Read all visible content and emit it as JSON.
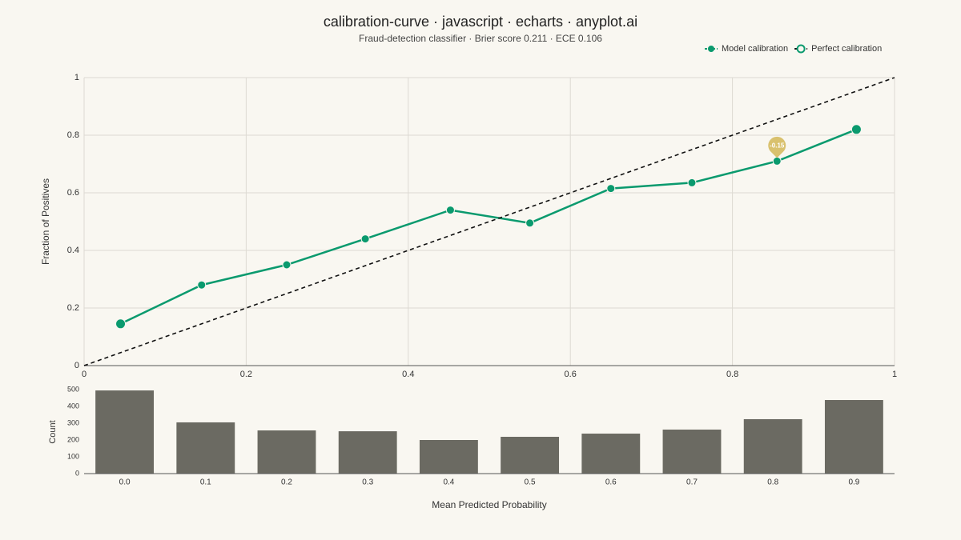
{
  "chart_data": [
    {
      "type": "line",
      "title": "calibration-curve · javascript · echarts · anyplot.ai",
      "subtitle": "Fraud-detection classifier · Brier score 0.211 · ECE 0.106",
      "ylabel": "Fraction of Positives",
      "xlim": [
        0,
        1
      ],
      "xticks": [
        0,
        0.2,
        0.4,
        0.6,
        0.8,
        1
      ],
      "ylim": [
        0,
        1
      ],
      "yticks": [
        0,
        0.2,
        0.4,
        0.6,
        0.8,
        1
      ],
      "grid": true,
      "legend": "upper right",
      "series": [
        {
          "name": "Model calibration",
          "color": "#0a9a6e",
          "dashed": false,
          "markers": true,
          "x": [
            0.045,
            0.145,
            0.25,
            0.347,
            0.452,
            0.55,
            0.65,
            0.75,
            0.855,
            0.953
          ],
          "values": [
            0.145,
            0.28,
            0.35,
            0.44,
            0.54,
            0.495,
            0.615,
            0.635,
            0.71,
            0.82
          ]
        },
        {
          "name": "Perfect calibration",
          "color": "#111111",
          "dashed": true,
          "markers": false,
          "x": [
            0,
            1
          ],
          "values": [
            0,
            1
          ]
        }
      ],
      "annotations": [
        {
          "text": "-0.15",
          "x": 0.855,
          "y": 0.71,
          "color": "#d9c16e"
        }
      ]
    },
    {
      "type": "bar",
      "xlabel": "Mean Predicted Probability",
      "ylabel": "Count",
      "categories": [
        "0.0",
        "0.1",
        "0.2",
        "0.3",
        "0.4",
        "0.5",
        "0.6",
        "0.7",
        "0.8",
        "0.9"
      ],
      "values": [
        495,
        305,
        257,
        252,
        200,
        219,
        238,
        262,
        324,
        438
      ],
      "color": "#6b6a62",
      "ylim": [
        0,
        500
      ],
      "yticks": [
        0,
        100,
        200,
        300,
        400,
        500
      ]
    }
  ]
}
